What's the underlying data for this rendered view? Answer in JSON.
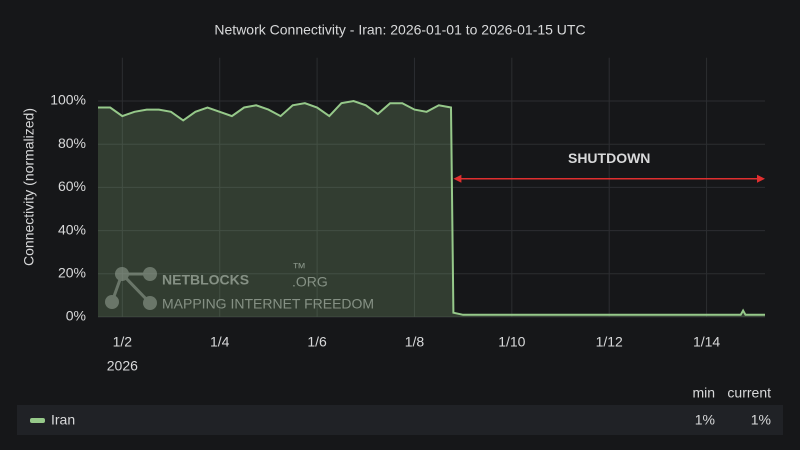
{
  "chart_data": {
    "type": "line",
    "title": "Network Connectivity - Iran: 2026-01-01 to 2026-01-15 UTC",
    "y_label": "Connectivity (normalized)",
    "x_year_label": "2026",
    "x": [
      1.5,
      1.75,
      2.0,
      2.25,
      2.5,
      2.75,
      3.0,
      3.25,
      3.5,
      3.75,
      4.0,
      4.25,
      4.5,
      4.75,
      5.0,
      5.25,
      5.5,
      5.75,
      6.0,
      6.25,
      6.5,
      6.75,
      7.0,
      7.25,
      7.5,
      7.75,
      8.0,
      8.25,
      8.5,
      8.75,
      8.8,
      9.0,
      10.0,
      11.0,
      12.0,
      13.0,
      14.0,
      14.7,
      14.75,
      14.8,
      15.2
    ],
    "series": [
      {
        "name": "Iran",
        "color": "#96c98a",
        "values": [
          97,
          97,
          93,
          95,
          96,
          96,
          95,
          91,
          95,
          97,
          95,
          93,
          97,
          98,
          96,
          93,
          98,
          99,
          97,
          93,
          99,
          100,
          98,
          94,
          99,
          99,
          96,
          95,
          98,
          97,
          2,
          1,
          1,
          1,
          1,
          1,
          1,
          1,
          3,
          1,
          1
        ]
      }
    ],
    "xlim": [
      1.5,
      15.2
    ],
    "xticks": [
      {
        "value": 2,
        "label": "1/2"
      },
      {
        "value": 4,
        "label": "1/4"
      },
      {
        "value": 6,
        "label": "1/6"
      },
      {
        "value": 8,
        "label": "1/8"
      },
      {
        "value": 10,
        "label": "1/10"
      },
      {
        "value": 12,
        "label": "1/12"
      },
      {
        "value": 14,
        "label": "1/14"
      }
    ],
    "ylim": [
      0,
      120
    ],
    "yticks": [
      {
        "value": 0,
        "label": "0%"
      },
      {
        "value": 20,
        "label": "20%"
      },
      {
        "value": 40,
        "label": "40%"
      },
      {
        "value": 60,
        "label": "60%"
      },
      {
        "value": 80,
        "label": "80%"
      },
      {
        "value": 100,
        "label": "100%"
      }
    ],
    "grid": true,
    "annotation": {
      "text": "SHUTDOWN",
      "start": 8.8,
      "end": 15.2,
      "y": 64,
      "color": "#e02f2f",
      "text_color": "#f2a72d"
    },
    "watermark": {
      "brand": "NETBLOCKS",
      "tm": "™",
      "domain": ".ORG",
      "tagline": "MAPPING INTERNET FREEDOM"
    },
    "legend_stats": [
      {
        "name": "min",
        "value": 1,
        "value_label": "1%"
      },
      {
        "name": "current",
        "value": 1,
        "value_label": "1%"
      }
    ]
  }
}
